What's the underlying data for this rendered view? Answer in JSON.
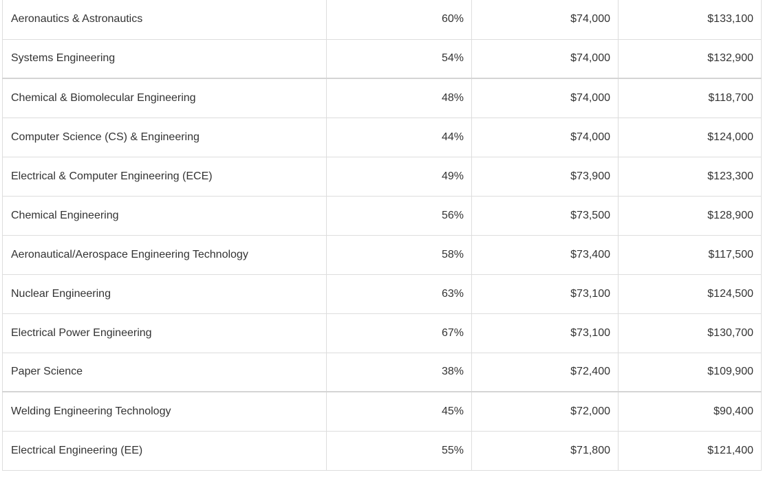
{
  "table": {
    "rows": [
      {
        "major": "Aeronautics & Astronautics",
        "pct": "60%",
        "early": "$74,000",
        "mid": "$133,100"
      },
      {
        "major": "Systems Engineering",
        "pct": "54%",
        "early": "$74,000",
        "mid": "$132,900"
      },
      {
        "major": "Chemical & Biomolecular Engineering",
        "pct": "48%",
        "early": "$74,000",
        "mid": "$118,700"
      },
      {
        "major": "Computer Science (CS) & Engineering",
        "pct": "44%",
        "early": "$74,000",
        "mid": "$124,000"
      },
      {
        "major": "Electrical & Computer Engineering (ECE)",
        "pct": "49%",
        "early": "$73,900",
        "mid": "$123,300"
      },
      {
        "major": "Chemical Engineering",
        "pct": "56%",
        "early": "$73,500",
        "mid": "$128,900"
      },
      {
        "major": "Aeronautical/Aerospace Engineering Technology",
        "pct": "58%",
        "early": "$73,400",
        "mid": "$117,500"
      },
      {
        "major": "Nuclear Engineering",
        "pct": "63%",
        "early": "$73,100",
        "mid": "$124,500"
      },
      {
        "major": "Electrical Power Engineering",
        "pct": "67%",
        "early": "$73,100",
        "mid": "$130,700"
      },
      {
        "major": "Paper Science",
        "pct": "38%",
        "early": "$72,400",
        "mid": "$109,900"
      },
      {
        "major": "Welding Engineering Technology",
        "pct": "45%",
        "early": "$72,000",
        "mid": "$90,400"
      },
      {
        "major": "Electrical Engineering (EE)",
        "pct": "55%",
        "early": "$71,800",
        "mid": "$121,400"
      }
    ]
  }
}
